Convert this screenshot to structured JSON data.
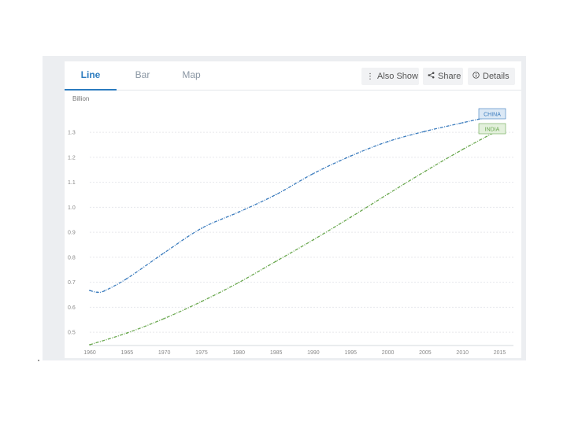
{
  "tabs": [
    {
      "label": "Line",
      "active": true
    },
    {
      "label": "Bar",
      "active": false
    },
    {
      "label": "Map",
      "active": false
    }
  ],
  "toolbar": {
    "also_show_label": "Also Show",
    "share_label": "Share",
    "details_label": "Details",
    "icons": [
      "vertical-ellipsis-icon",
      "share-icon",
      "info-icon"
    ]
  },
  "colors": {
    "china": "#3a7bbd",
    "india": "#6aa84f",
    "china_tag_bg": "#dbe8f5",
    "india_tag_bg": "#e3f0dc",
    "accent": "#2b7bbf"
  },
  "chart_data": {
    "type": "line",
    "ylabel": "Billion",
    "y_ticks": [
      "1.3",
      "1.2",
      "1.1",
      "1.0",
      "0.9",
      "0.8",
      "0.7",
      "0.6",
      "0.5"
    ],
    "x_ticks": [
      "1960",
      "1965",
      "1970",
      "1975",
      "1980",
      "1985",
      "1990",
      "1995",
      "2000",
      "2005",
      "2010",
      "2015"
    ],
    "ylim": [
      0.45,
      1.42
    ],
    "xlim": [
      1960,
      2016
    ],
    "grid": true,
    "series": [
      {
        "name": "CHINA",
        "x": [
          1960,
          1961,
          1962,
          1965,
          1970,
          1975,
          1980,
          1985,
          1990,
          1995,
          2000,
          2005,
          2010,
          2015
        ],
        "y": [
          0.667,
          0.66,
          0.666,
          0.715,
          0.818,
          0.916,
          0.981,
          1.051,
          1.135,
          1.205,
          1.263,
          1.304,
          1.338,
          1.371
        ]
      },
      {
        "name": "INDIA",
        "x": [
          1960,
          1965,
          1970,
          1975,
          1980,
          1985,
          1990,
          1995,
          2000,
          2005,
          2010,
          2015
        ],
        "y": [
          0.45,
          0.497,
          0.555,
          0.623,
          0.699,
          0.784,
          0.87,
          0.96,
          1.053,
          1.144,
          1.231,
          1.311
        ]
      }
    ]
  }
}
